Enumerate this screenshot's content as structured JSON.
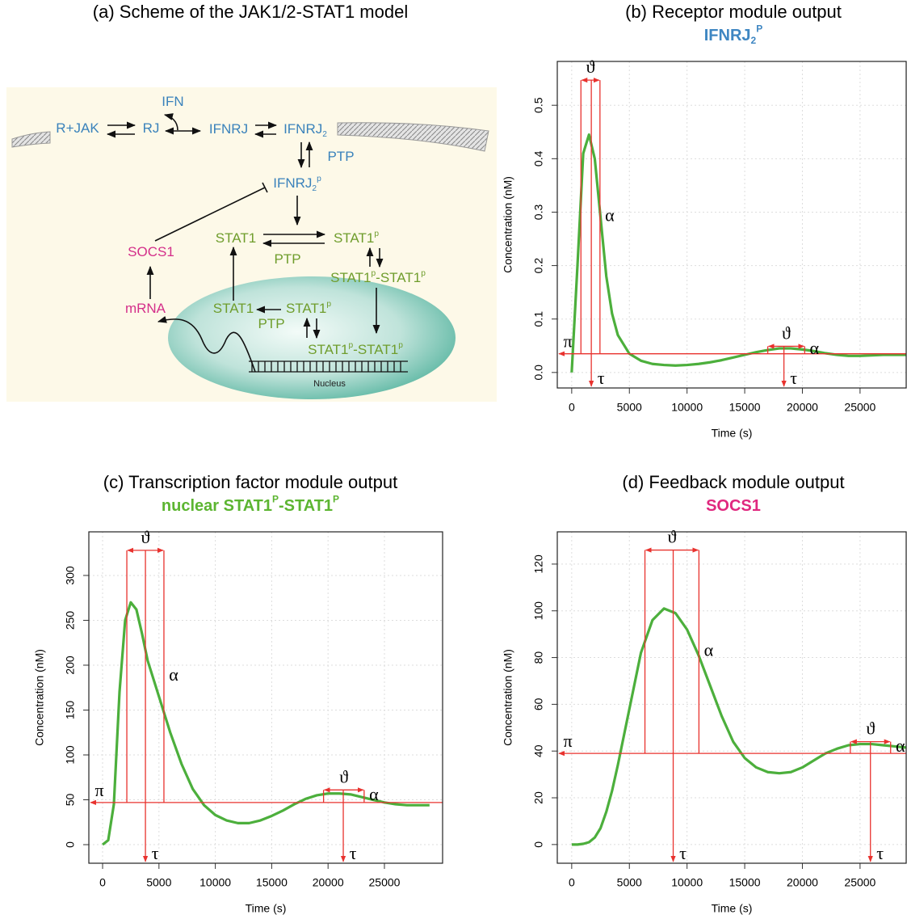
{
  "scheme": {
    "title": "(a) Scheme of the JAK1/2-STAT1 model",
    "labels": [
      [
        {
          "text": "IFN"
        }
      ],
      [
        {
          "text": "R+JAK"
        }
      ],
      [
        {
          "text": "RJ"
        }
      ],
      [
        {
          "text": "IFNRJ"
        }
      ],
      [
        {
          "text": "IFNRJ"
        },
        {
          "sub": "2"
        }
      ],
      [
        {
          "text": "PTP"
        }
      ],
      [
        {
          "text": "IFNRJ"
        },
        {
          "sub": "2"
        },
        {
          "sup": "p"
        }
      ],
      [
        {
          "text": "STAT1"
        }
      ],
      [
        {
          "text": "STAT1"
        },
        {
          "sup": "p"
        }
      ],
      [
        {
          "text": "PTP"
        }
      ],
      [
        {
          "text": "STAT1"
        },
        {
          "sup": "p"
        },
        {
          "text": "-STAT1"
        },
        {
          "sup": "p"
        }
      ],
      [
        {
          "text": "SOCS1"
        }
      ],
      [
        {
          "text": "mRNA"
        }
      ],
      [
        {
          "text": "STAT1"
        }
      ],
      [
        {
          "text": "STAT1"
        },
        {
          "sup": "p"
        }
      ],
      [
        {
          "text": "PTP"
        }
      ],
      [
        {
          "text": "STAT1"
        },
        {
          "sup": "p"
        },
        {
          "text": "-STAT1"
        },
        {
          "sup": "p"
        }
      ],
      [
        {
          "text": "Nucleus"
        }
      ]
    ]
  },
  "chart_data": [
    {
      "type": "line",
      "title": "(b) Receptor module output",
      "subtitle": [
        {
          "text": "IFNRJ"
        },
        {
          "sub": "2"
        },
        {
          "sup": "P"
        }
      ],
      "subtitle_color": "#3e86c2",
      "xlabel": "Time (s)",
      "ylabel": "Concentration (nM)",
      "x": [
        0,
        500,
        1000,
        1500,
        2000,
        2500,
        3000,
        3500,
        4000,
        5000,
        6000,
        7000,
        8000,
        9000,
        10000,
        11000,
        12000,
        13000,
        14000,
        15000,
        16000,
        17000,
        18000,
        19000,
        20000,
        21000,
        22000,
        23000,
        24000,
        25000,
        26000,
        27000,
        28000,
        29000
      ],
      "values": [
        0,
        0.2,
        0.41,
        0.445,
        0.4,
        0.29,
        0.18,
        0.11,
        0.07,
        0.035,
        0.022,
        0.016,
        0.014,
        0.013,
        0.014,
        0.016,
        0.019,
        0.023,
        0.028,
        0.033,
        0.038,
        0.042,
        0.045,
        0.045,
        0.043,
        0.04,
        0.036,
        0.033,
        0.031,
        0.031,
        0.032,
        0.033,
        0.033,
        0.033
      ],
      "color": "#4caf3c",
      "xlim": [
        -1250,
        29000
      ],
      "ylim": [
        -0.029,
        0.582
      ],
      "xticks": [
        0,
        5000,
        10000,
        15000,
        20000,
        25000
      ],
      "yticks": [
        {
          "value": 0,
          "label": "0.0"
        },
        0.1,
        0.2,
        0.3,
        0.4,
        0.5
      ],
      "grid": true,
      "annotation": {
        "color": "#e8322e",
        "baseline": 0.035,
        "peaks": [
          {
            "time": 1700,
            "value": 0.445,
            "start": 800,
            "end": 2450,
            "top": 0.547
          },
          {
            "time": 18400,
            "value": 0.045,
            "start": 17000,
            "end": 20200,
            "top": 0.049
          }
        ],
        "symbols": {
          "pi": "π",
          "tau": "τ",
          "theta": "ϑ",
          "alpha": "α"
        }
      }
    },
    {
      "type": "line",
      "title": "(c) Transcription factor module output",
      "subtitle": [
        {
          "text": "nuclear STAT1"
        },
        {
          "sup": "P"
        },
        {
          "text": "-STAT1"
        },
        {
          "sup": "P"
        }
      ],
      "subtitle_color": "#5cb531",
      "xlabel": "Time (s)",
      "ylabel": "Concentration (nM)",
      "x": [
        0,
        500,
        1000,
        1500,
        2000,
        2500,
        3000,
        3500,
        4000,
        5000,
        6000,
        7000,
        8000,
        9000,
        10000,
        11000,
        12000,
        13000,
        14000,
        15000,
        16000,
        17000,
        18000,
        19000,
        20000,
        21000,
        22000,
        23000,
        24000,
        25000,
        26000,
        27000,
        28000,
        29000
      ],
      "values": [
        0,
        5,
        45,
        170,
        250,
        270,
        262,
        235,
        205,
        165,
        125,
        90,
        62,
        44,
        33,
        27,
        24,
        24,
        27,
        32,
        38,
        45,
        51,
        55,
        57,
        57,
        56,
        53,
        50,
        47,
        45,
        44,
        44,
        44
      ],
      "color": "#4caf3c",
      "xlim": [
        -1220,
        30160
      ],
      "ylim": [
        -20.7,
        348.6
      ],
      "xticks": [
        0,
        5000,
        10000,
        15000,
        20000,
        25000
      ],
      "yticks": [
        0,
        50,
        100,
        150,
        200,
        250,
        300
      ],
      "grid": true,
      "annotation": {
        "color": "#e8322e",
        "baseline": 47,
        "peaks": [
          {
            "time": 3800,
            "value": 270,
            "start": 2150,
            "end": 5440,
            "top": 328
          },
          {
            "time": 21350,
            "value": 57,
            "start": 19600,
            "end": 23200,
            "top": 61
          }
        ],
        "symbols": {
          "pi": "π",
          "tau": "τ",
          "theta": "ϑ",
          "alpha": "α"
        }
      }
    },
    {
      "type": "line",
      "title": "(d) Feedback module output",
      "subtitle": [
        {
          "text": "SOCS1"
        }
      ],
      "subtitle_color": "#e0287f",
      "xlabel": "Time (s)",
      "ylabel": "Concentration (nM)",
      "x": [
        0,
        500,
        1000,
        1500,
        2000,
        2500,
        3000,
        3500,
        4000,
        5000,
        6000,
        7000,
        8000,
        9000,
        10000,
        11000,
        12000,
        13000,
        14000,
        15000,
        16000,
        17000,
        18000,
        19000,
        20000,
        21000,
        22000,
        23000,
        24000,
        25000,
        26000,
        27000,
        28000,
        29000
      ],
      "values": [
        0,
        0,
        0.3,
        1,
        3,
        7,
        14,
        23,
        34,
        58,
        82,
        96,
        101,
        99,
        92,
        81,
        68,
        55,
        44,
        37,
        33,
        31,
        30.5,
        31,
        33,
        36,
        39,
        41,
        42.5,
        43,
        43,
        42.5,
        42,
        41.5
      ],
      "color": "#4caf3c",
      "xlim": [
        -1250,
        29000
      ],
      "ylim": [
        -8,
        133.8
      ],
      "xticks": [
        0,
        5000,
        10000,
        15000,
        20000,
        25000
      ],
      "yticks": [
        0,
        20,
        40,
        60,
        80,
        100,
        120
      ],
      "grid": true,
      "annotation": {
        "color": "#e8322e",
        "baseline": 39,
        "peaks": [
          {
            "time": 8800,
            "value": 101,
            "start": 6350,
            "end": 11030,
            "top": 126
          },
          {
            "time": 25900,
            "value": 43,
            "start": 24160,
            "end": 27650,
            "top": 44
          }
        ],
        "symbols": {
          "pi": "π",
          "tau": "τ",
          "theta": "ϑ",
          "alpha": "α"
        }
      }
    }
  ]
}
